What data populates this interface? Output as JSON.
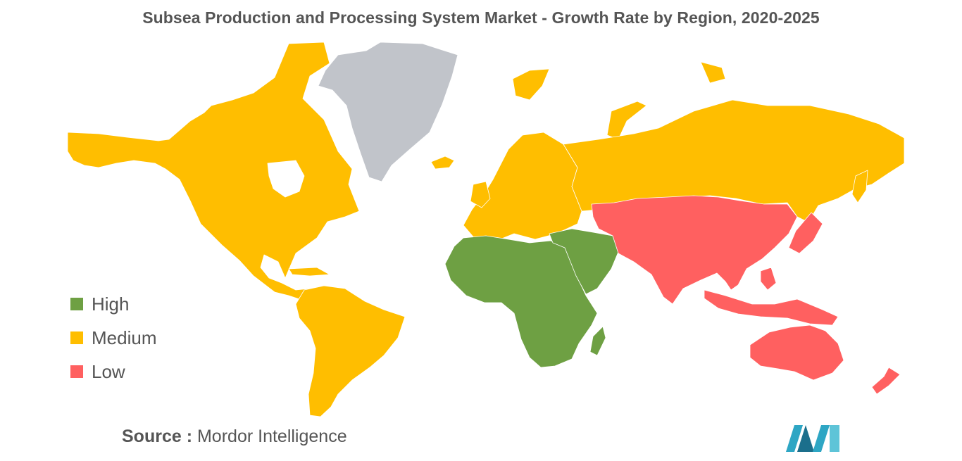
{
  "title": "Subsea Production and Processing System Market - Growth Rate by Region, 2020-2025",
  "legend": [
    {
      "label": "High",
      "color": "#6ea043"
    },
    {
      "label": "Medium",
      "color": "#ffbe00"
    },
    {
      "label": "Low",
      "color": "#ff6060"
    }
  ],
  "no_data_color": "#c1c4ca",
  "regions": {
    "north_america": "Medium",
    "greenland": "no-data",
    "south_america": "Medium",
    "europe": "Medium",
    "russia": "Medium",
    "africa": "High",
    "middle_east": "High",
    "asia_pacific": "Low",
    "australia_new_zealand": "Low"
  },
  "source": {
    "key": "Source :",
    "value": "Mordor Intelligence"
  },
  "logo_icon": "mordor-intelligence-logo"
}
